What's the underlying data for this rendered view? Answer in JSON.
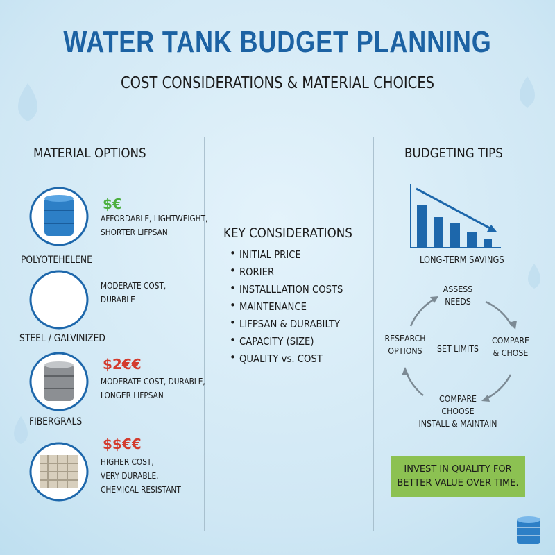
{
  "header": {
    "title": "WATER TANK BUDGET PLANNING",
    "subtitle": "COST CONSIDERATIONS & MATERIAL CHOICES"
  },
  "materials": {
    "title": "MATERIAL OPTIONS",
    "items": [
      {
        "price": "$€",
        "lines": [
          "AFFORDABLE, LIGHTWEIGHT,",
          "SHORTER LIFPSAN"
        ],
        "name": "POLYOTEHELENE"
      },
      {
        "lines": [
          "MODERATE COST,",
          "DURABLE"
        ],
        "name": "STEEL / GALVINIZED"
      },
      {
        "price": "$2€€",
        "lines": [
          "MODERATE COST, DURABLE,",
          "LONGER LIFPSAN"
        ],
        "name": "FIBERGRALS"
      },
      {
        "price": "$$€€",
        "lines": [
          "HIGHER COST,",
          "VERY DURABLE,",
          "CHEMICAL RESISTANT"
        ]
      }
    ]
  },
  "considerations": {
    "title": "KEY CONSIDERATIONS",
    "items": [
      "INITIAL PRICE",
      "RORIER",
      "INSTALLLATION COSTS",
      "MAINTENANCE",
      "LIFPSAN & DURABILTY",
      "CAPACITY (SIZE)",
      "QUALITY vs. COST"
    ]
  },
  "tips": {
    "title": "BUDGETING TIPS",
    "chart_label": "LONG-TERM SAVINGS",
    "cycle": [
      [
        "ASSESS",
        "NEEDS"
      ],
      [
        "COMPARE",
        "& CHOSE"
      ],
      [
        "COMPARE",
        "CHOOSE",
        "INSTALL & MAINTAIN"
      ],
      [
        "RESEARCH",
        "OPTIONS"
      ]
    ],
    "center": "SET LIMITS",
    "callout": [
      "INVEST IN QUALITY FOR",
      "BETTER VALUE OVER TIME."
    ]
  }
}
